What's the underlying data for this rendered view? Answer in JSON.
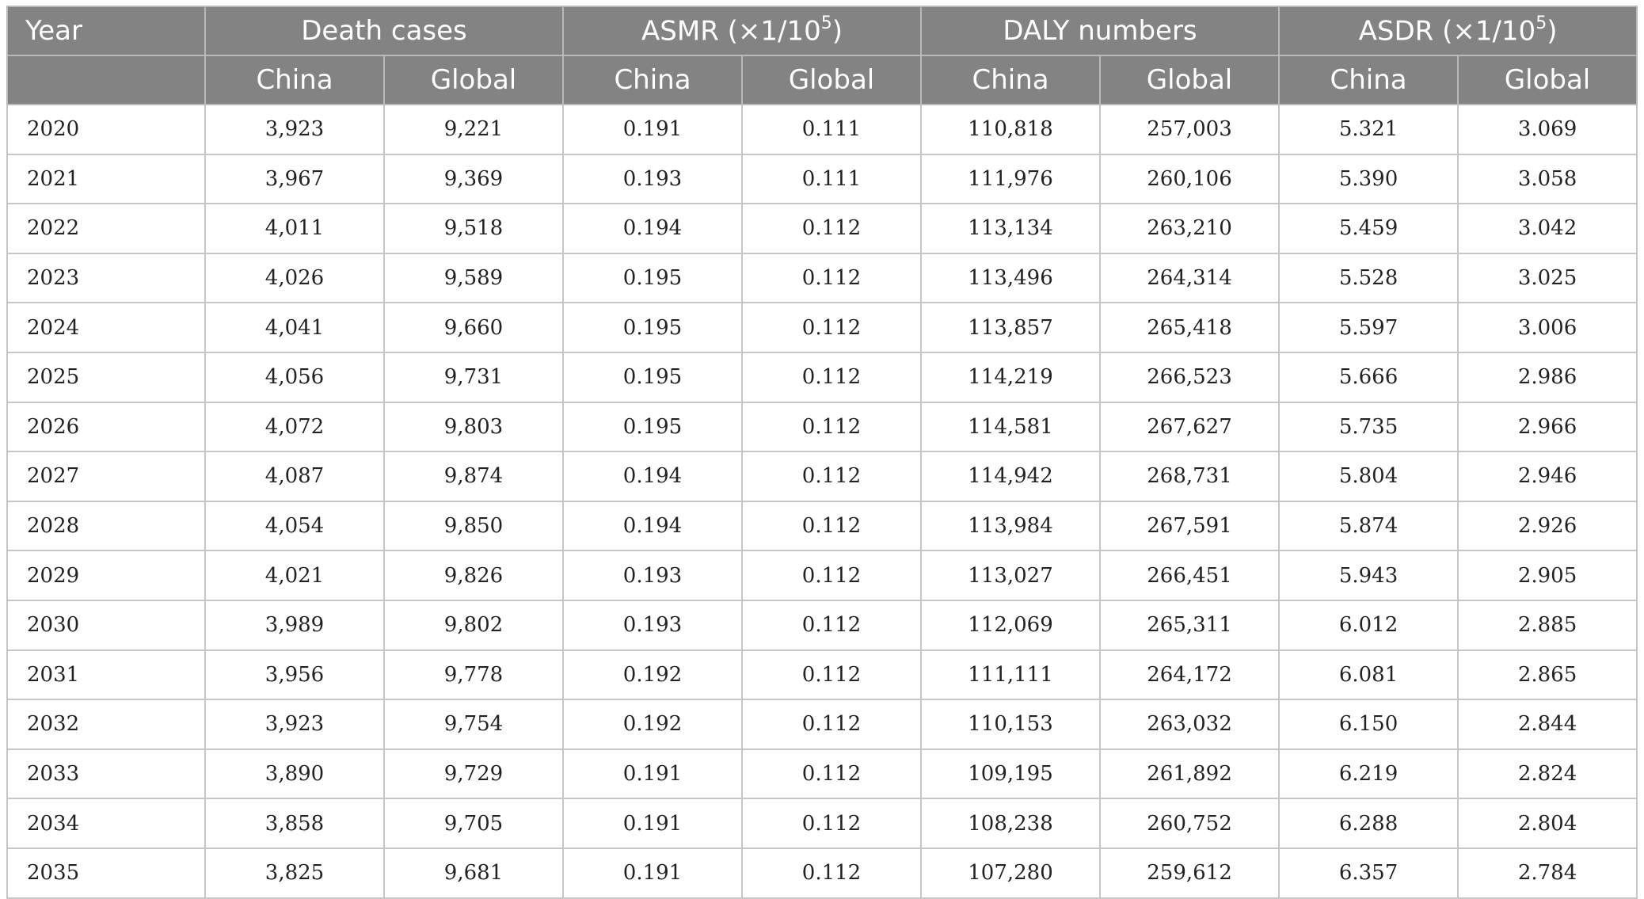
{
  "table": {
    "header_top": {
      "year": "Year",
      "groups": [
        {
          "label": "Death cases",
          "sup": ""
        },
        {
          "label": "ASMR (×1/10",
          "sup": "5",
          "close": ")"
        },
        {
          "label": "DALY numbers",
          "sup": ""
        },
        {
          "label": "ASDR (×1/10",
          "sup": "5",
          "close": ")"
        }
      ]
    },
    "header_sub": [
      "China",
      "Global",
      "China",
      "Global",
      "China",
      "Global",
      "China",
      "Global"
    ],
    "rows": [
      [
        "2020",
        "3,923",
        "9,221",
        "0.191",
        "0.111",
        "110,818",
        "257,003",
        "5.321",
        "3.069"
      ],
      [
        "2021",
        "3,967",
        "9,369",
        "0.193",
        "0.111",
        "111,976",
        "260,106",
        "5.390",
        "3.058"
      ],
      [
        "2022",
        "4,011",
        "9,518",
        "0.194",
        "0.112",
        "113,134",
        "263,210",
        "5.459",
        "3.042"
      ],
      [
        "2023",
        "4,026",
        "9,589",
        "0.195",
        "0.112",
        "113,496",
        "264,314",
        "5.528",
        "3.025"
      ],
      [
        "2024",
        "4,041",
        "9,660",
        "0.195",
        "0.112",
        "113,857",
        "265,418",
        "5.597",
        "3.006"
      ],
      [
        "2025",
        "4,056",
        "9,731",
        "0.195",
        "0.112",
        "114,219",
        "266,523",
        "5.666",
        "2.986"
      ],
      [
        "2026",
        "4,072",
        "9,803",
        "0.195",
        "0.112",
        "114,581",
        "267,627",
        "5.735",
        "2.966"
      ],
      [
        "2027",
        "4,087",
        "9,874",
        "0.194",
        "0.112",
        "114,942",
        "268,731",
        "5.804",
        "2.946"
      ],
      [
        "2028",
        "4,054",
        "9,850",
        "0.194",
        "0.112",
        "113,984",
        "267,591",
        "5.874",
        "2.926"
      ],
      [
        "2029",
        "4,021",
        "9,826",
        "0.193",
        "0.112",
        "113,027",
        "266,451",
        "5.943",
        "2.905"
      ],
      [
        "2030",
        "3,989",
        "9,802",
        "0.193",
        "0.112",
        "112,069",
        "265,311",
        "6.012",
        "2.885"
      ],
      [
        "2031",
        "3,956",
        "9,778",
        "0.192",
        "0.112",
        "111,111",
        "264,172",
        "6.081",
        "2.865"
      ],
      [
        "2032",
        "3,923",
        "9,754",
        "0.192",
        "0.112",
        "110,153",
        "263,032",
        "6.150",
        "2.844"
      ],
      [
        "2033",
        "3,890",
        "9,729",
        "0.191",
        "0.112",
        "109,195",
        "261,892",
        "6.219",
        "2.824"
      ],
      [
        "2034",
        "3,858",
        "9,705",
        "0.191",
        "0.112",
        "108,238",
        "260,752",
        "6.288",
        "2.804"
      ],
      [
        "2035",
        "3,825",
        "9,681",
        "0.191",
        "0.112",
        "107,280",
        "259,612",
        "6.357",
        "2.784"
      ]
    ],
    "colors": {
      "header_bg": "#838383",
      "header_text": "#ffffff",
      "grid": "#c6c6c6",
      "body_text": "#222222"
    }
  }
}
